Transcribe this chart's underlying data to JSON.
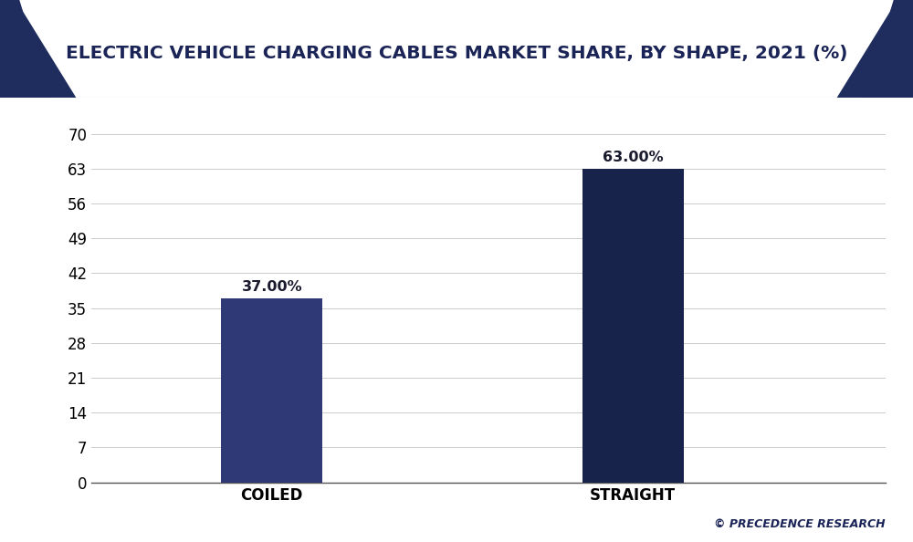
{
  "title": "ELECTRIC VEHICLE CHARGING CABLES MARKET SHARE, BY SHAPE, 2021 (%)",
  "categories": [
    "COILED",
    "STRAIGHT"
  ],
  "values": [
    37.0,
    63.0
  ],
  "bar_colors": [
    "#2e3975",
    "#17234a"
  ],
  "background_color": "#ffffff",
  "header_bg_color": "#1e2d5e",
  "yticks": [
    0,
    7,
    14,
    21,
    28,
    35,
    42,
    49,
    56,
    63,
    70
  ],
  "ylim": [
    0,
    74
  ],
  "value_labels": [
    "37.00%",
    "63.00%"
  ],
  "watermark": "© PRECEDENCE RESEARCH",
  "title_fontsize": 14.5,
  "tick_fontsize": 12,
  "label_fontsize": 12,
  "value_fontsize": 11.5
}
